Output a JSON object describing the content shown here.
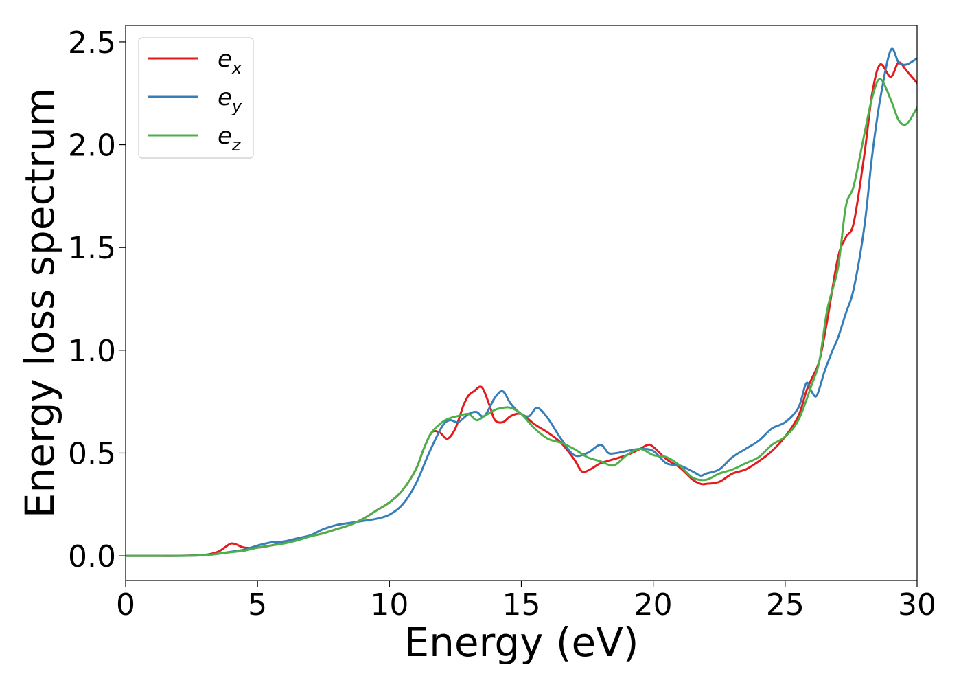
{
  "chart_data": {
    "type": "line",
    "title": "",
    "xlabel": "Energy (eV)",
    "ylabel": "Energy loss spectrum",
    "xlim": [
      0,
      30
    ],
    "ylim": [
      -0.12,
      2.58
    ],
    "xticks": [
      0,
      5,
      10,
      15,
      20,
      25,
      30
    ],
    "yticks": [
      0.0,
      0.5,
      1.0,
      1.5,
      2.0,
      2.5
    ],
    "xtick_labels": [
      "0",
      "5",
      "10",
      "15",
      "20",
      "25",
      "30"
    ],
    "ytick_labels": [
      "0.0",
      "0.5",
      "1.0",
      "1.5",
      "2.0",
      "2.5"
    ],
    "grid": false,
    "legend_position": "top-left",
    "series": [
      {
        "name": "e_x",
        "label_base": "e",
        "label_sub": "x",
        "color": "#e41a1c",
        "x": [
          0,
          1,
          2,
          3,
          3.5,
          3.8,
          4.0,
          4.2,
          4.5,
          5.0,
          5.5,
          6.0,
          6.5,
          7.0,
          7.5,
          8.0,
          8.5,
          9.0,
          9.5,
          10.0,
          10.5,
          11.0,
          11.3,
          11.6,
          11.9,
          12.2,
          12.5,
          12.8,
          13.0,
          13.2,
          13.5,
          13.8,
          14.0,
          14.3,
          14.6,
          15.0,
          15.5,
          16.0,
          16.5,
          17.0,
          17.3,
          17.6,
          18.0,
          18.5,
          19.0,
          19.5,
          19.8,
          20.0,
          20.5,
          21.0,
          21.5,
          21.8,
          22.0,
          22.5,
          23.0,
          23.5,
          24.0,
          24.5,
          25.0,
          25.5,
          25.8,
          26.0,
          26.3,
          26.6,
          27.0,
          27.3,
          27.6,
          28.0,
          28.3,
          28.6,
          29.0,
          29.3,
          29.6,
          30.0
        ],
        "y": [
          0,
          0,
          0,
          0.005,
          0.02,
          0.045,
          0.06,
          0.055,
          0.04,
          0.04,
          0.05,
          0.065,
          0.08,
          0.095,
          0.11,
          0.13,
          0.15,
          0.18,
          0.22,
          0.26,
          0.32,
          0.42,
          0.52,
          0.6,
          0.6,
          0.57,
          0.62,
          0.73,
          0.78,
          0.8,
          0.82,
          0.73,
          0.66,
          0.65,
          0.68,
          0.69,
          0.64,
          0.6,
          0.55,
          0.47,
          0.41,
          0.42,
          0.45,
          0.47,
          0.49,
          0.52,
          0.54,
          0.53,
          0.47,
          0.43,
          0.37,
          0.35,
          0.35,
          0.36,
          0.4,
          0.42,
          0.46,
          0.51,
          0.58,
          0.68,
          0.8,
          0.86,
          0.95,
          1.15,
          1.45,
          1.55,
          1.62,
          1.95,
          2.25,
          2.39,
          2.33,
          2.4,
          2.36,
          2.3
        ]
      },
      {
        "name": "e_y",
        "label_base": "e",
        "label_sub": "y",
        "color": "#377eb8",
        "x": [
          0,
          1,
          2,
          3,
          3.5,
          4.0,
          4.5,
          5.0,
          5.5,
          6.0,
          6.5,
          7.0,
          7.5,
          8.0,
          8.5,
          9.0,
          9.5,
          10.0,
          10.5,
          11.0,
          11.5,
          12.0,
          12.3,
          12.6,
          13.0,
          13.3,
          13.6,
          14.0,
          14.3,
          14.6,
          15.0,
          15.3,
          15.6,
          16.0,
          16.5,
          17.0,
          17.5,
          18.0,
          18.3,
          18.6,
          19.0,
          19.5,
          20.0,
          20.5,
          21.0,
          21.5,
          21.8,
          22.0,
          22.5,
          23.0,
          23.5,
          24.0,
          24.5,
          25.0,
          25.5,
          25.8,
          26.0,
          26.2,
          26.5,
          26.8,
          27.0,
          27.3,
          27.6,
          28.0,
          28.3,
          28.6,
          29.0,
          29.3,
          29.6,
          30.0
        ],
        "y": [
          0,
          0,
          0,
          0.003,
          0.01,
          0.02,
          0.03,
          0.05,
          0.065,
          0.07,
          0.085,
          0.1,
          0.13,
          0.15,
          0.16,
          0.17,
          0.18,
          0.2,
          0.25,
          0.35,
          0.5,
          0.63,
          0.66,
          0.65,
          0.69,
          0.7,
          0.68,
          0.77,
          0.8,
          0.74,
          0.69,
          0.68,
          0.72,
          0.67,
          0.57,
          0.49,
          0.5,
          0.54,
          0.5,
          0.5,
          0.51,
          0.52,
          0.51,
          0.45,
          0.44,
          0.41,
          0.39,
          0.4,
          0.42,
          0.48,
          0.52,
          0.56,
          0.62,
          0.65,
          0.72,
          0.84,
          0.8,
          0.78,
          0.9,
          1.0,
          1.06,
          1.18,
          1.3,
          1.6,
          1.95,
          2.22,
          2.46,
          2.4,
          2.39,
          2.42
        ]
      },
      {
        "name": "e_z",
        "label_base": "e",
        "label_sub": "z",
        "color": "#4daf4a",
        "x": [
          0,
          1,
          2,
          3,
          3.5,
          4.0,
          4.5,
          5.0,
          5.5,
          6.0,
          6.5,
          7.0,
          7.5,
          8.0,
          8.5,
          9.0,
          9.5,
          10.0,
          10.5,
          11.0,
          11.3,
          11.6,
          12.0,
          12.3,
          12.6,
          13.0,
          13.3,
          13.6,
          14.0,
          14.3,
          14.6,
          15.0,
          15.5,
          16.0,
          16.5,
          17.0,
          17.5,
          18.0,
          18.5,
          19.0,
          19.5,
          20.0,
          20.5,
          21.0,
          21.5,
          22.0,
          22.5,
          23.0,
          23.5,
          24.0,
          24.5,
          25.0,
          25.5,
          26.0,
          26.3,
          26.6,
          27.0,
          27.3,
          27.6,
          28.0,
          28.3,
          28.6,
          29.0,
          29.3,
          29.6,
          30.0
        ],
        "y": [
          0,
          0,
          0,
          0.003,
          0.01,
          0.018,
          0.025,
          0.04,
          0.05,
          0.06,
          0.075,
          0.095,
          0.11,
          0.13,
          0.15,
          0.18,
          0.22,
          0.26,
          0.32,
          0.42,
          0.52,
          0.6,
          0.65,
          0.67,
          0.68,
          0.69,
          0.66,
          0.68,
          0.71,
          0.72,
          0.72,
          0.69,
          0.62,
          0.57,
          0.55,
          0.52,
          0.48,
          0.46,
          0.44,
          0.49,
          0.52,
          0.49,
          0.48,
          0.44,
          0.38,
          0.37,
          0.4,
          0.42,
          0.45,
          0.48,
          0.54,
          0.58,
          0.66,
          0.83,
          0.95,
          1.2,
          1.4,
          1.7,
          1.8,
          2.05,
          2.23,
          2.32,
          2.22,
          2.12,
          2.1,
          2.18
        ]
      }
    ]
  }
}
